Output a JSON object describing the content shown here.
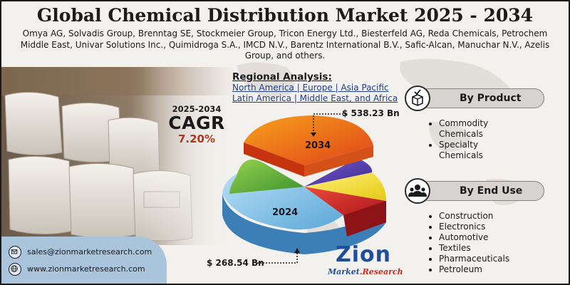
{
  "header": {
    "title": "Global Chemical Distribution Market 2025 - 2034",
    "companies": "Omya AG, Solvadis Group, Brenntag SE, Stockmeier Group, Tricon Energy Ltd., Biesterfeld AG, Reda Chemicals, Petrochem Middle East, Univar Solutions Inc., Quimidroga S.A., IMCD N.V., Barentz International B.V., Safic-Alcan, Manuchar N.V., Azelis Group, and others."
  },
  "regional": {
    "title": "Regional Analysis:",
    "line1": "North America | Europe | Asia Pacific",
    "line2": "Latin America | Middle East, and Africa"
  },
  "cagr": {
    "period": "2025-2034",
    "label": "CAGR",
    "rate": "7.20%"
  },
  "market": {
    "year_2034": "2034",
    "value_2034": "$ 538.23 Bn",
    "year_2024": "2024",
    "value_2024": "$ 268.54 Bn"
  },
  "by_product": {
    "title": "By Product",
    "icon": "box-check-icon",
    "items": [
      "Commodity Chemicals",
      "Specialty Chemicals"
    ]
  },
  "by_end_use": {
    "title": "By End Use",
    "icon": "users-icon",
    "items": [
      "Construction",
      "Electronics",
      "Automotive",
      "Textiles",
      "Pharmaceuticals",
      "Petroleum"
    ]
  },
  "contact": {
    "email": "sales@zionmarketresearch.com",
    "website": "www.zionmarketresearch.com"
  },
  "logo": {
    "name": "Zion",
    "sub_part1": "Market",
    "sub_part2": ".Research"
  },
  "colors": {
    "cagr_rate": "#b0361f",
    "regions": "#1e3d8a",
    "logo_blue": "#1f4f9c",
    "logo_red": "#c8291f",
    "contact_panel": "#aac4dc"
  }
}
